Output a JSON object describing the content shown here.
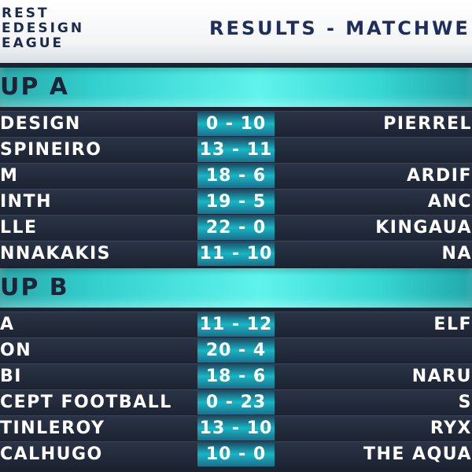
{
  "header": {
    "logo_lines": [
      "REST",
      "EDESIGN",
      "EAGUE"
    ],
    "title": "RESULTS - MATCHWE"
  },
  "groups": [
    {
      "title": "UP A",
      "matches": [
        {
          "home": "DESIGN",
          "score": "0 - 10",
          "away": "PIERREL"
        },
        {
          "home": "SPINEIRO",
          "score": "13 - 11",
          "away": ""
        },
        {
          "home": "M",
          "score": "18 - 6",
          "away": "ARDIF"
        },
        {
          "home": "INTH",
          "score": "19 - 5",
          "away": "ANC"
        },
        {
          "home": "LLE",
          "score": "22 - 0",
          "away": "KINGAUA"
        },
        {
          "home": "NNAKAKIS",
          "score": "11 - 10",
          "away": "NA"
        }
      ]
    },
    {
      "title": "UP B",
      "matches": [
        {
          "home": "A",
          "score": "11 - 12",
          "away": "ELF"
        },
        {
          "home": "ON",
          "score": "20 - 4",
          "away": ""
        },
        {
          "home": "BI",
          "score": "18 - 6",
          "away": "NARU"
        },
        {
          "home": "CEPT FOOTBALL",
          "score": "0 - 23",
          "away": "S"
        },
        {
          "home": "TINLEROY",
          "score": "13 - 10",
          "away": "RYX"
        },
        {
          "home": "CALHUGO",
          "score": "10 - 0",
          "away": "THE AQUA"
        }
      ]
    }
  ]
}
